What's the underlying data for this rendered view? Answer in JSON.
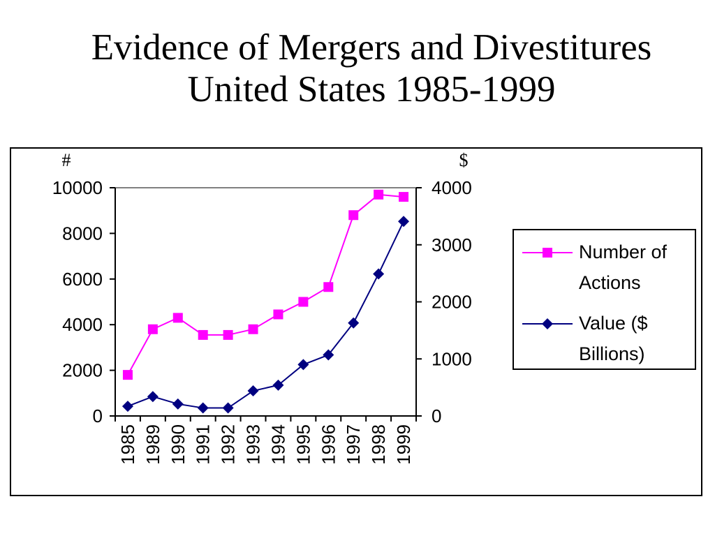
{
  "slide": {
    "title_line1": "Evidence of Mergers and Divestitures",
    "title_line2": "United States 1985-1999"
  },
  "chart_data": {
    "type": "line",
    "categories": [
      "1985",
      "1989",
      "1990",
      "1991",
      "1992",
      "1993",
      "1994",
      "1995",
      "1996",
      "1997",
      "1998",
      "1999"
    ],
    "left_axis": {
      "unit_label": "#",
      "range": [
        0,
        10000
      ],
      "ticks": [
        0,
        2000,
        4000,
        6000,
        8000,
        10000
      ]
    },
    "right_axis": {
      "unit_label": "$",
      "range": [
        0,
        4000
      ],
      "ticks": [
        0,
        1000,
        2000,
        3000,
        4000
      ]
    },
    "series": [
      {
        "name": "Number of Actions",
        "axis": "left",
        "color": "#ff00ff",
        "marker": "square",
        "values": [
          1800,
          3800,
          4300,
          3550,
          3550,
          3800,
          4450,
          5000,
          5650,
          8800,
          9700,
          9600
        ]
      },
      {
        "name": "Value ($ Billions)",
        "axis": "right",
        "color": "#000080",
        "marker": "diamond",
        "values": [
          170,
          340,
          210,
          140,
          140,
          440,
          540,
          900,
          1070,
          1630,
          2490,
          3410
        ]
      }
    ],
    "legend": {
      "placement": "right",
      "entries": [
        {
          "lines": [
            "Number of",
            "Actions"
          ]
        },
        {
          "lines": [
            "Value ($",
            "Billions)"
          ]
        }
      ]
    }
  }
}
